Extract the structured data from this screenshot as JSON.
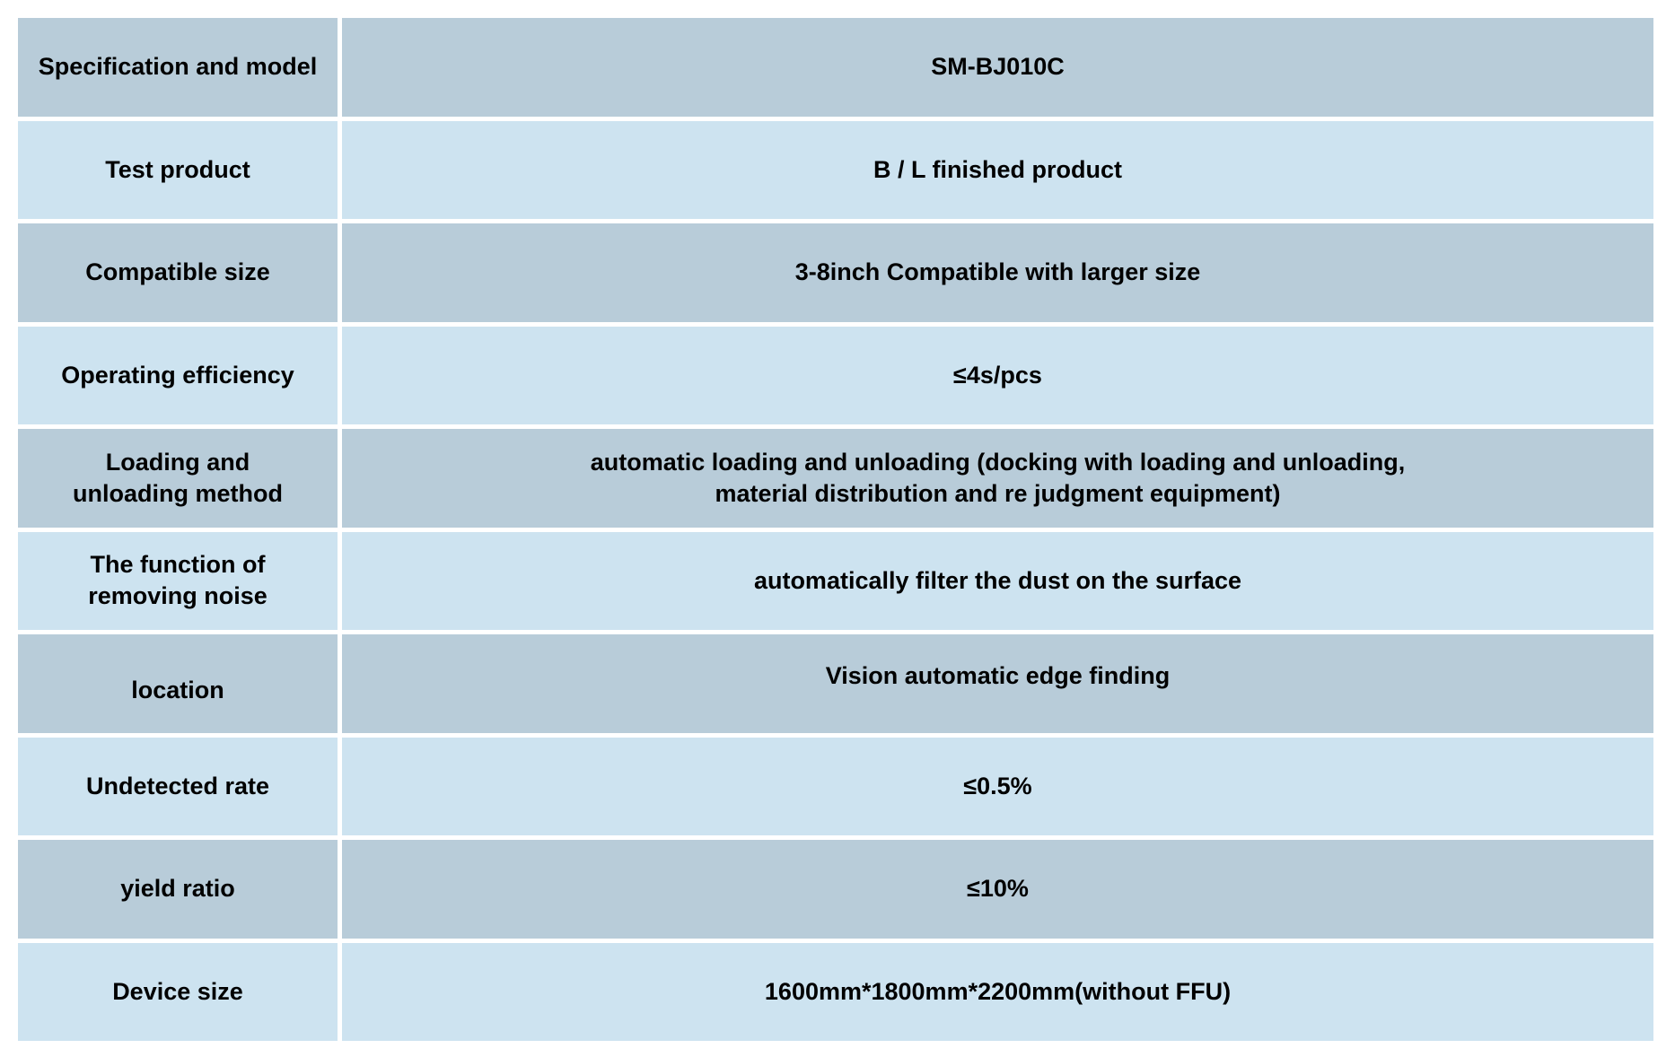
{
  "colors": {
    "row_dark": "#b8ccd9",
    "row_light": "#cde3f0"
  },
  "rows": [
    {
      "label": "Specification and model",
      "value": "SM-BJ010C"
    },
    {
      "label": "Test product",
      "value": "B / L finished product"
    },
    {
      "label": "Compatible size",
      "value": "3-8inch Compatible with larger size"
    },
    {
      "label": "Operating efficiency",
      "value": "≤4s/pcs"
    },
    {
      "label": "Loading and\nunloading method",
      "value": "automatic loading and unloading (docking with loading and unloading,\nmaterial distribution and re judgment equipment)"
    },
    {
      "label": "The function of\nremoving noise",
      "value": "automatically filter the dust on the surface"
    },
    {
      "label": "location",
      "value": "Vision automatic edge finding"
    },
    {
      "label": "Undetected rate",
      "value": "≤0.5%"
    },
    {
      "label": "yield ratio",
      "value": "≤10%"
    },
    {
      "label": "Device size",
      "value": "1600mm*1800mm*2200mm(without FFU)"
    }
  ]
}
